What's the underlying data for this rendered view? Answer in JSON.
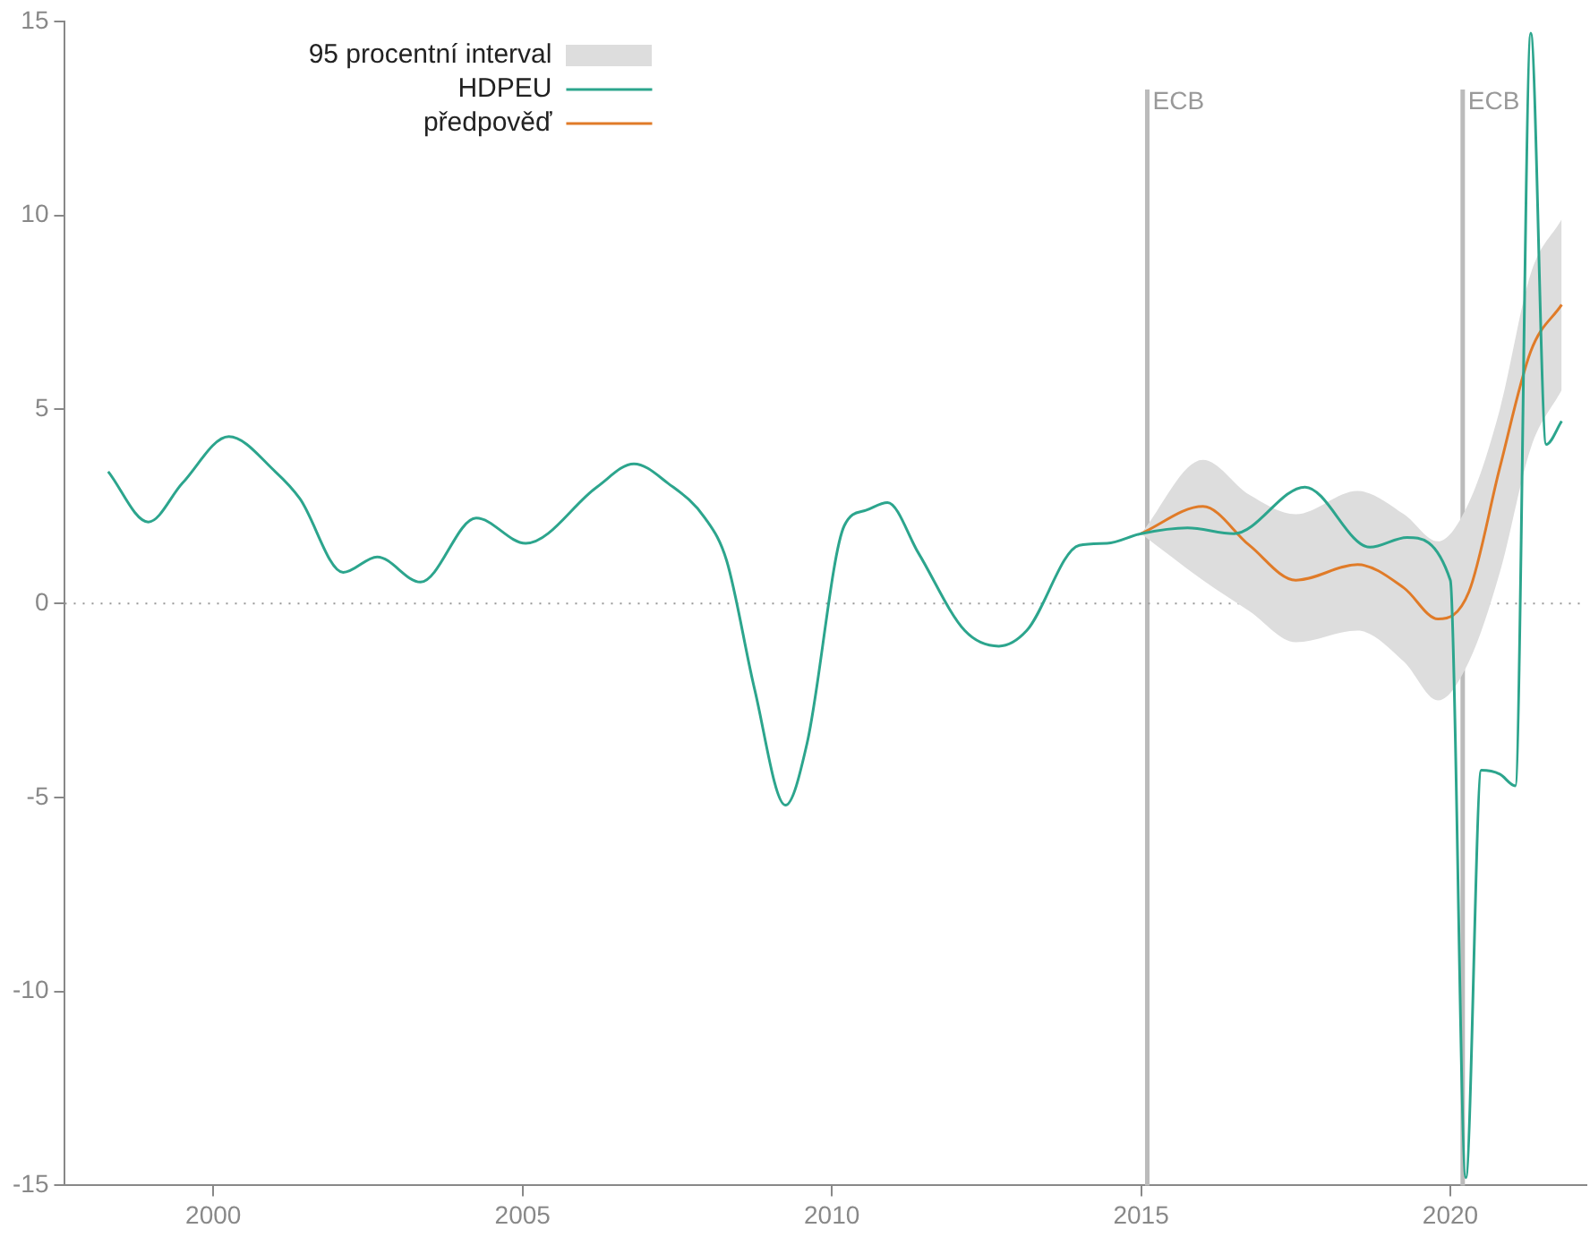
{
  "chart_data": {
    "type": "line",
    "xlim": [
      1997.6,
      2022.2
    ],
    "xticks": [
      2000,
      2005,
      2010,
      2015,
      2020
    ],
    "ylim": [
      -15,
      15
    ],
    "yticks": [
      -15,
      -10,
      -5,
      0,
      5,
      10,
      15
    ],
    "grid": false,
    "legend": "top left",
    "series": [
      {
        "name": "HDPEU",
        "type": "line",
        "color": "#2ca58d",
        "x": [
          1998.3,
          1998.95,
          1999.5,
          2000.25,
          2001.0,
          2001.4,
          2002.1,
          2002.65,
          2003.35,
          2004.25,
          2005.05,
          2006.2,
          2006.8,
          2007.35,
          2007.95,
          2008.3,
          2008.75,
          2009.25,
          2009.6,
          2010.2,
          2010.55,
          2010.9,
          2011.4,
          2012.15,
          2012.7,
          2013.15,
          2014.0,
          2014.45,
          2015.0,
          2015.75,
          2016.5,
          2017.65,
          2018.7,
          2019.3,
          2020.0,
          2020.25,
          2020.5,
          2020.8,
          2021.05,
          2021.3,
          2021.55,
          2021.8
        ],
        "values": [
          3.4,
          2.1,
          3.1,
          4.3,
          3.4,
          2.7,
          0.8,
          1.2,
          0.55,
          2.2,
          1.55,
          3.0,
          3.6,
          3.1,
          2.2,
          1.1,
          -2.2,
          -5.2,
          -3.6,
          2.0,
          2.4,
          2.6,
          1.3,
          -0.7,
          -1.1,
          -0.7,
          1.5,
          1.55,
          1.8,
          1.95,
          1.8,
          3.0,
          1.45,
          1.7,
          0.6,
          -14.8,
          -4.3,
          -4.4,
          -4.7,
          14.7,
          4.1,
          4.7
        ]
      },
      {
        "name": "předpověď",
        "type": "line",
        "color": "#e07b28",
        "x": [
          2015,
          2016,
          2016.75,
          2017.5,
          2018.5,
          2019.25,
          2019.8,
          2020.3,
          2020.8,
          2021.3,
          2021.8
        ],
        "values": [
          1.8,
          2.5,
          1.5,
          0.6,
          1.0,
          0.4,
          -0.4,
          0.3,
          3.5,
          6.5,
          7.7
        ],
        "lower": [
          1.8,
          0.6,
          -0.2,
          -1.0,
          -0.7,
          -1.5,
          -2.5,
          -1.5,
          0.8,
          4.0,
          5.5
        ],
        "upper": [
          1.8,
          3.7,
          2.8,
          2.3,
          2.9,
          2.3,
          1.6,
          2.6,
          5.0,
          8.5,
          9.9
        ]
      }
    ],
    "annotations": [
      "95 procentní interval"
    ],
    "ref_lines": [
      {
        "axis": "x",
        "value": 2015.1,
        "label": "ECB",
        "color": "#bbbbbb"
      },
      {
        "axis": "x",
        "value": 2020.2,
        "label": "ECB",
        "color": "#bbbbbb"
      },
      {
        "axis": "y",
        "value": 0,
        "label": null,
        "color": "#999999",
        "line_style": "dotted"
      }
    ]
  }
}
